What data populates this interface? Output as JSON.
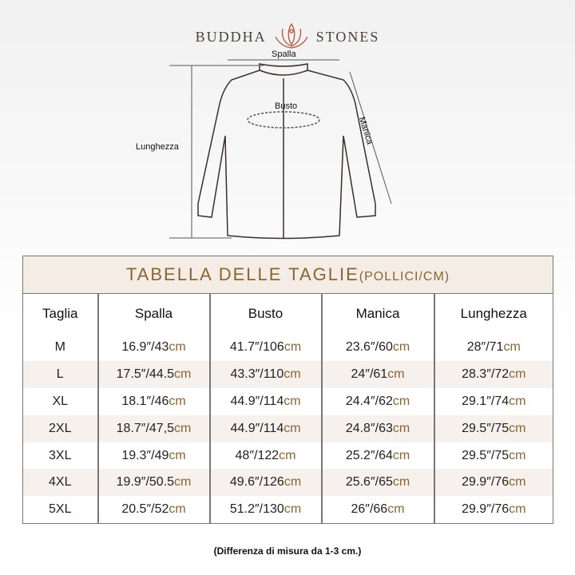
{
  "brand": {
    "left": "BUDDHA",
    "right": "STONES",
    "logo_color": "#b5553a"
  },
  "diagram": {
    "spalla": "Spalla",
    "busto": "Busto",
    "manica": "Manica",
    "lunghezza": "Lunghezza"
  },
  "table": {
    "title": "TABELLA DELLE TAGLIE",
    "title_units": "(POLLICI/CM)",
    "headers": [
      "Taglia",
      "Spalla",
      "Busto",
      "Manica",
      "Lunghezza"
    ],
    "unit": "cm",
    "rows": [
      {
        "size": "M",
        "vals": [
          "16.9″/43",
          "41.7″/106",
          "23.6″/60",
          "28″/71"
        ]
      },
      {
        "size": "L",
        "vals": [
          "17.5″/44.5",
          "43.3″/110",
          "24″/61",
          "28.3″/72"
        ]
      },
      {
        "size": "XL",
        "vals": [
          "18.1″/46",
          "44.9″/114",
          "24.4″/62",
          "29.1″/74"
        ]
      },
      {
        "size": "2XL",
        "vals": [
          "18.7″/47,5",
          "44.9″/114",
          "24.8″/63",
          "29.5″/75"
        ]
      },
      {
        "size": "3XL",
        "vals": [
          "19.3″/49",
          "48″/122",
          "25.2″/64",
          "29.5″/75"
        ]
      },
      {
        "size": "4XL",
        "vals": [
          "19.9″/50.5",
          "49.6″/126",
          "25.6″/65",
          "29.9″/76"
        ]
      },
      {
        "size": "5XL",
        "vals": [
          "20.5″/52",
          "51.2″/130",
          "26″/66",
          "29.9″/76"
        ]
      }
    ],
    "accent": "#8a6530",
    "stripe": "#f6f1ec"
  },
  "note": "(Differenza di misura da 1-3 cm.)"
}
